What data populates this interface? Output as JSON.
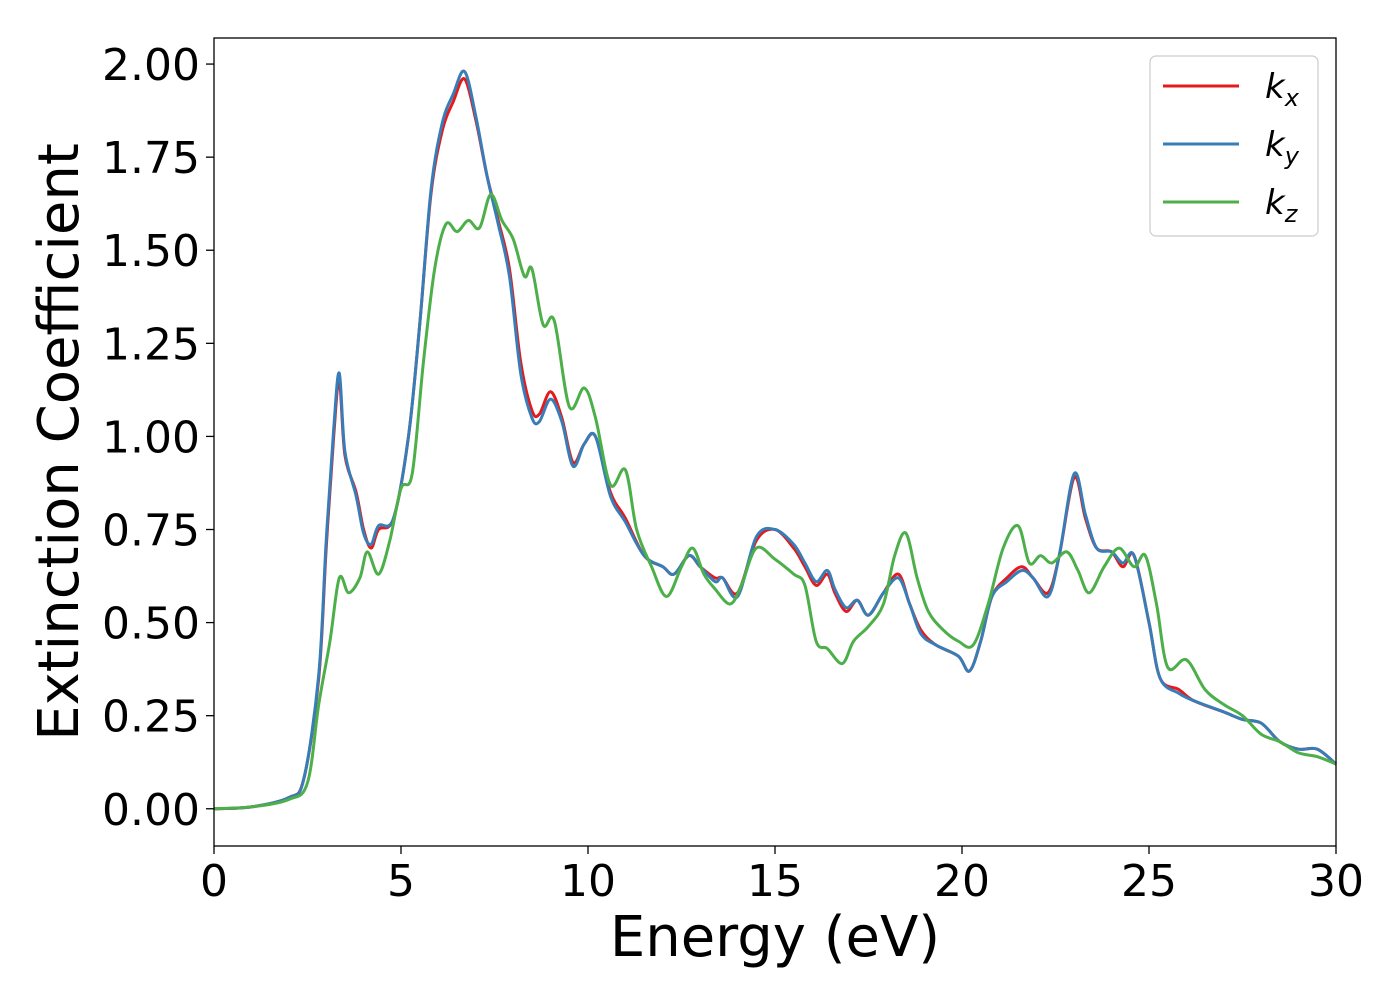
{
  "chart_data": {
    "type": "line",
    "xlabel": "Energy (eV)",
    "ylabel": "Extinction Coefficient",
    "xlim": [
      0,
      30
    ],
    "ylim": [
      -0.1,
      2.07
    ],
    "xticks": [
      0,
      5,
      10,
      15,
      20,
      25,
      30
    ],
    "xtick_labels": [
      "0",
      "5",
      "10",
      "15",
      "20",
      "25",
      "30"
    ],
    "yticks": [
      0.0,
      0.25,
      0.5,
      0.75,
      1.0,
      1.25,
      1.5,
      1.75,
      2.0
    ],
    "ytick_labels": [
      "0.00",
      "0.25",
      "0.50",
      "0.75",
      "1.00",
      "1.25",
      "1.50",
      "1.75",
      "2.00"
    ],
    "grid": false,
    "legend_position": "top-right",
    "series": [
      {
        "name": "k",
        "subscript": "x",
        "color": "#e41a1c",
        "points": [
          [
            0,
            0
          ],
          [
            1,
            0.005
          ],
          [
            2,
            0.03
          ],
          [
            2.4,
            0.08
          ],
          [
            2.8,
            0.35
          ],
          [
            3.0,
            0.7
          ],
          [
            3.2,
            1.0
          ],
          [
            3.35,
            1.15
          ],
          [
            3.5,
            0.95
          ],
          [
            3.8,
            0.85
          ],
          [
            4.0,
            0.75
          ],
          [
            4.2,
            0.7
          ],
          [
            4.4,
            0.75
          ],
          [
            4.8,
            0.78
          ],
          [
            5.2,
            1.0
          ],
          [
            5.5,
            1.3
          ],
          [
            5.8,
            1.65
          ],
          [
            6.1,
            1.82
          ],
          [
            6.4,
            1.9
          ],
          [
            6.7,
            1.96
          ],
          [
            7.0,
            1.85
          ],
          [
            7.3,
            1.7
          ],
          [
            7.6,
            1.58
          ],
          [
            7.9,
            1.45
          ],
          [
            8.2,
            1.2
          ],
          [
            8.5,
            1.07
          ],
          [
            8.7,
            1.06
          ],
          [
            9.0,
            1.12
          ],
          [
            9.3,
            1.05
          ],
          [
            9.6,
            0.93
          ],
          [
            9.9,
            0.98
          ],
          [
            10.2,
            1.0
          ],
          [
            10.6,
            0.85
          ],
          [
            11.0,
            0.78
          ],
          [
            11.5,
            0.68
          ],
          [
            12.0,
            0.65
          ],
          [
            12.3,
            0.63
          ],
          [
            12.7,
            0.68
          ],
          [
            13.0,
            0.65
          ],
          [
            13.4,
            0.62
          ],
          [
            13.6,
            0.62
          ],
          [
            14.0,
            0.58
          ],
          [
            14.5,
            0.72
          ],
          [
            15.0,
            0.75
          ],
          [
            15.5,
            0.7
          ],
          [
            15.8,
            0.65
          ],
          [
            16.1,
            0.6
          ],
          [
            16.4,
            0.63
          ],
          [
            16.6,
            0.58
          ],
          [
            16.9,
            0.53
          ],
          [
            17.2,
            0.56
          ],
          [
            17.5,
            0.52
          ],
          [
            17.9,
            0.58
          ],
          [
            18.3,
            0.63
          ],
          [
            18.6,
            0.55
          ],
          [
            18.9,
            0.48
          ],
          [
            19.3,
            0.44
          ],
          [
            19.9,
            0.41
          ],
          [
            20.2,
            0.37
          ],
          [
            20.5,
            0.45
          ],
          [
            20.8,
            0.57
          ],
          [
            21.2,
            0.62
          ],
          [
            21.6,
            0.65
          ],
          [
            21.9,
            0.62
          ],
          [
            22.3,
            0.58
          ],
          [
            22.6,
            0.68
          ],
          [
            23.0,
            0.89
          ],
          [
            23.3,
            0.78
          ],
          [
            23.6,
            0.7
          ],
          [
            24.0,
            0.69
          ],
          [
            24.3,
            0.65
          ],
          [
            24.6,
            0.68
          ],
          [
            25.0,
            0.5
          ],
          [
            25.3,
            0.35
          ],
          [
            25.8,
            0.32
          ],
          [
            26.2,
            0.29
          ],
          [
            27.0,
            0.26
          ],
          [
            27.5,
            0.24
          ],
          [
            28.0,
            0.23
          ],
          [
            28.5,
            0.18
          ],
          [
            29.0,
            0.16
          ],
          [
            29.5,
            0.16
          ],
          [
            30,
            0.12
          ]
        ]
      },
      {
        "name": "k",
        "subscript": "y",
        "color": "#377eb8",
        "points": [
          [
            0,
            0
          ],
          [
            1,
            0.005
          ],
          [
            2,
            0.03
          ],
          [
            2.4,
            0.08
          ],
          [
            2.8,
            0.36
          ],
          [
            3.0,
            0.72
          ],
          [
            3.2,
            1.02
          ],
          [
            3.35,
            1.17
          ],
          [
            3.5,
            0.96
          ],
          [
            3.8,
            0.84
          ],
          [
            4.0,
            0.74
          ],
          [
            4.2,
            0.71
          ],
          [
            4.4,
            0.76
          ],
          [
            4.8,
            0.78
          ],
          [
            5.2,
            1.0
          ],
          [
            5.5,
            1.3
          ],
          [
            5.8,
            1.66
          ],
          [
            6.1,
            1.84
          ],
          [
            6.4,
            1.92
          ],
          [
            6.7,
            1.98
          ],
          [
            7.0,
            1.86
          ],
          [
            7.3,
            1.7
          ],
          [
            7.6,
            1.57
          ],
          [
            7.9,
            1.43
          ],
          [
            8.2,
            1.17
          ],
          [
            8.5,
            1.05
          ],
          [
            8.7,
            1.04
          ],
          [
            9.0,
            1.1
          ],
          [
            9.3,
            1.04
          ],
          [
            9.6,
            0.92
          ],
          [
            9.9,
            0.98
          ],
          [
            10.2,
            1.0
          ],
          [
            10.6,
            0.84
          ],
          [
            11.0,
            0.77
          ],
          [
            11.5,
            0.68
          ],
          [
            12.0,
            0.65
          ],
          [
            12.3,
            0.63
          ],
          [
            12.7,
            0.68
          ],
          [
            13.0,
            0.65
          ],
          [
            13.4,
            0.61
          ],
          [
            13.6,
            0.62
          ],
          [
            14.0,
            0.57
          ],
          [
            14.5,
            0.73
          ],
          [
            15.0,
            0.75
          ],
          [
            15.5,
            0.71
          ],
          [
            15.8,
            0.66
          ],
          [
            16.1,
            0.61
          ],
          [
            16.4,
            0.64
          ],
          [
            16.6,
            0.59
          ],
          [
            16.9,
            0.54
          ],
          [
            17.2,
            0.56
          ],
          [
            17.5,
            0.52
          ],
          [
            17.9,
            0.58
          ],
          [
            18.3,
            0.62
          ],
          [
            18.6,
            0.55
          ],
          [
            18.9,
            0.47
          ],
          [
            19.3,
            0.44
          ],
          [
            19.9,
            0.41
          ],
          [
            20.2,
            0.37
          ],
          [
            20.5,
            0.45
          ],
          [
            20.8,
            0.57
          ],
          [
            21.2,
            0.61
          ],
          [
            21.6,
            0.64
          ],
          [
            21.9,
            0.62
          ],
          [
            22.3,
            0.57
          ],
          [
            22.6,
            0.68
          ],
          [
            23.0,
            0.9
          ],
          [
            23.3,
            0.79
          ],
          [
            23.6,
            0.7
          ],
          [
            24.0,
            0.69
          ],
          [
            24.3,
            0.66
          ],
          [
            24.6,
            0.68
          ],
          [
            25.0,
            0.5
          ],
          [
            25.3,
            0.35
          ],
          [
            25.8,
            0.31
          ],
          [
            26.2,
            0.29
          ],
          [
            27.0,
            0.26
          ],
          [
            27.5,
            0.24
          ],
          [
            28.0,
            0.23
          ],
          [
            28.5,
            0.18
          ],
          [
            29.0,
            0.16
          ],
          [
            29.5,
            0.16
          ],
          [
            30,
            0.12
          ]
        ]
      },
      {
        "name": "k",
        "subscript": "z",
        "color": "#4daf4a",
        "points": [
          [
            0,
            0
          ],
          [
            1,
            0.005
          ],
          [
            2,
            0.025
          ],
          [
            2.5,
            0.07
          ],
          [
            2.8,
            0.28
          ],
          [
            3.1,
            0.45
          ],
          [
            3.35,
            0.62
          ],
          [
            3.6,
            0.58
          ],
          [
            3.9,
            0.62
          ],
          [
            4.1,
            0.69
          ],
          [
            4.4,
            0.63
          ],
          [
            4.7,
            0.72
          ],
          [
            5.0,
            0.86
          ],
          [
            5.3,
            0.9
          ],
          [
            5.6,
            1.2
          ],
          [
            5.9,
            1.45
          ],
          [
            6.2,
            1.57
          ],
          [
            6.5,
            1.55
          ],
          [
            6.8,
            1.58
          ],
          [
            7.1,
            1.56
          ],
          [
            7.4,
            1.65
          ],
          [
            7.7,
            1.58
          ],
          [
            8.0,
            1.53
          ],
          [
            8.3,
            1.43
          ],
          [
            8.5,
            1.45
          ],
          [
            8.8,
            1.3
          ],
          [
            9.1,
            1.31
          ],
          [
            9.5,
            1.08
          ],
          [
            9.9,
            1.13
          ],
          [
            10.2,
            1.05
          ],
          [
            10.6,
            0.87
          ],
          [
            11.0,
            0.91
          ],
          [
            11.3,
            0.75
          ],
          [
            11.7,
            0.65
          ],
          [
            12.1,
            0.57
          ],
          [
            12.5,
            0.65
          ],
          [
            12.8,
            0.7
          ],
          [
            13.1,
            0.63
          ],
          [
            13.4,
            0.59
          ],
          [
            13.8,
            0.55
          ],
          [
            14.1,
            0.6
          ],
          [
            14.5,
            0.7
          ],
          [
            15.0,
            0.67
          ],
          [
            15.5,
            0.63
          ],
          [
            15.8,
            0.6
          ],
          [
            16.1,
            0.45
          ],
          [
            16.4,
            0.43
          ],
          [
            16.8,
            0.39
          ],
          [
            17.1,
            0.45
          ],
          [
            17.5,
            0.49
          ],
          [
            17.9,
            0.55
          ],
          [
            18.2,
            0.68
          ],
          [
            18.5,
            0.74
          ],
          [
            18.8,
            0.62
          ],
          [
            19.1,
            0.53
          ],
          [
            19.5,
            0.48
          ],
          [
            19.9,
            0.45
          ],
          [
            20.3,
            0.44
          ],
          [
            20.7,
            0.55
          ],
          [
            21.1,
            0.7
          ],
          [
            21.5,
            0.76
          ],
          [
            21.8,
            0.66
          ],
          [
            22.1,
            0.68
          ],
          [
            22.4,
            0.66
          ],
          [
            22.8,
            0.69
          ],
          [
            23.1,
            0.64
          ],
          [
            23.4,
            0.58
          ],
          [
            23.8,
            0.65
          ],
          [
            24.2,
            0.7
          ],
          [
            24.6,
            0.65
          ],
          [
            24.9,
            0.68
          ],
          [
            25.2,
            0.55
          ],
          [
            25.5,
            0.38
          ],
          [
            26.0,
            0.4
          ],
          [
            26.5,
            0.32
          ],
          [
            27.0,
            0.28
          ],
          [
            27.5,
            0.25
          ],
          [
            28.0,
            0.2
          ],
          [
            28.5,
            0.18
          ],
          [
            29.0,
            0.15
          ],
          [
            29.5,
            0.14
          ],
          [
            30,
            0.12
          ]
        ]
      }
    ]
  }
}
